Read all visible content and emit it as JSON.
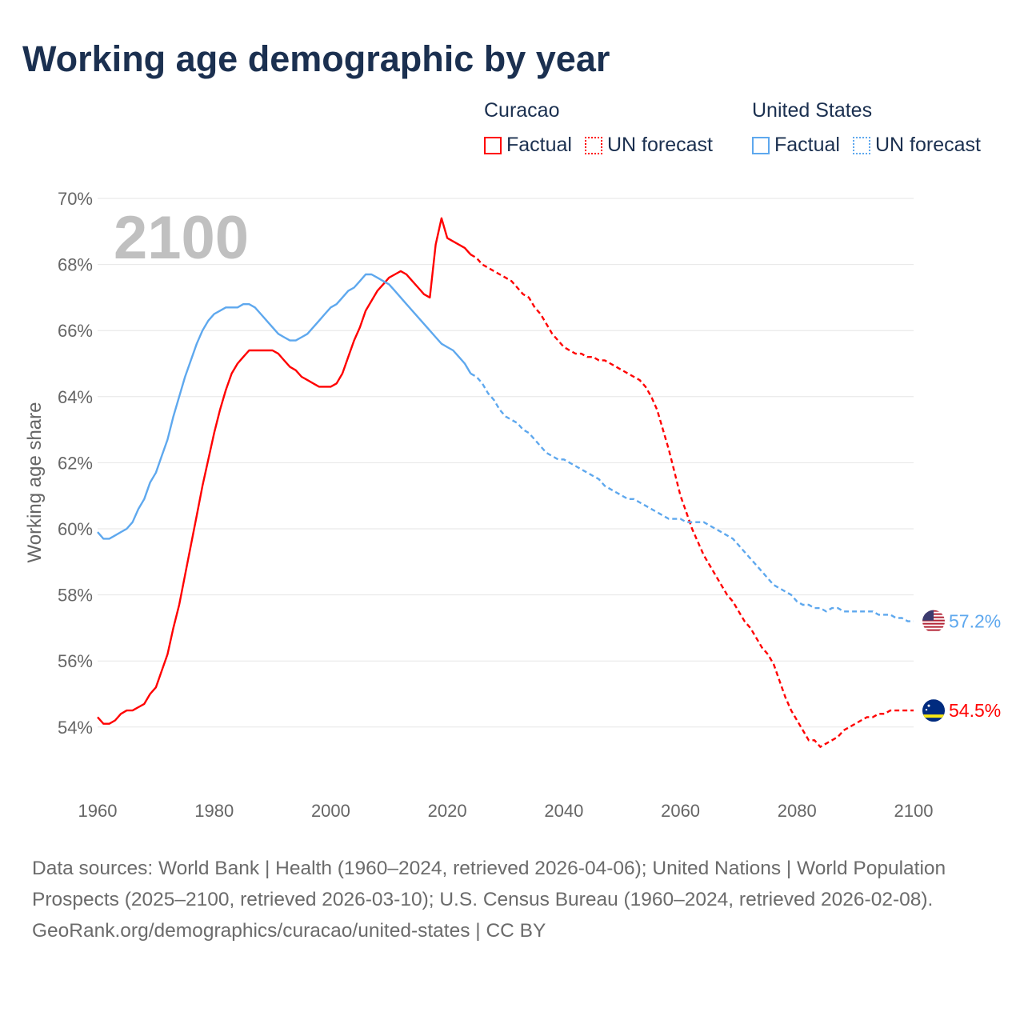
{
  "title": "Working age demographic by year",
  "legend": {
    "groups": [
      {
        "name": "Curacao",
        "color": "#ff0000",
        "factual": "Factual",
        "forecast": "UN forecast"
      },
      {
        "name": "United States",
        "color": "#5ea8ee",
        "factual": "Factual",
        "forecast": "UN forecast"
      }
    ]
  },
  "year_watermark": "2100",
  "footer": {
    "sources": "Data sources: World Bank | Health (1960–2024, retrieved 2026-04-06); United Nations | World Population Prospects (2025–2100, retrieved 2026-03-10); U.S. Census Bureau (1960–2024, retrieved 2026-02-08).",
    "credit": "GeoRank.org/demographics/curacao/united-states | CC BY"
  },
  "chart_data": {
    "type": "line",
    "title": "Working age demographic by year",
    "xlabel": "",
    "ylabel": "Working age share",
    "xlim": [
      1960,
      2100
    ],
    "ylim": [
      53,
      70
    ],
    "x_ticks": [
      "1960",
      "1980",
      "2000",
      "2020",
      "2040",
      "2060",
      "2080",
      "2100"
    ],
    "x_tick_values": [
      1960,
      1980,
      2000,
      2020,
      2040,
      2060,
      2080,
      2100
    ],
    "y_ticks": [
      "54%",
      "56%",
      "58%",
      "60%",
      "62%",
      "64%",
      "66%",
      "68%",
      "70%"
    ],
    "y_tick_values": [
      54,
      56,
      58,
      60,
      62,
      64,
      66,
      68,
      70
    ],
    "grid": true,
    "legend_position": "top-right",
    "series": [
      {
        "name": "Curacao",
        "color": "#ff0000",
        "end_label": "54.5%",
        "factual_start": 1960,
        "factual": [
          54.3,
          54.1,
          54.1,
          54.2,
          54.4,
          54.5,
          54.5,
          54.6,
          54.7,
          55.0,
          55.2,
          55.7,
          56.2,
          57.0,
          57.7,
          58.6,
          59.5,
          60.4,
          61.3,
          62.1,
          62.9,
          63.6,
          64.2,
          64.7,
          65.0,
          65.2,
          65.4,
          65.4,
          65.4,
          65.4,
          65.4,
          65.3,
          65.1,
          64.9,
          64.8,
          64.6,
          64.5,
          64.4,
          64.3,
          64.3,
          64.3,
          64.4,
          64.7,
          65.2,
          65.7,
          66.1,
          66.6,
          66.9,
          67.2,
          67.4,
          67.6,
          67.7,
          67.8,
          67.7,
          67.5,
          67.3,
          67.1,
          67.0,
          68.6,
          69.4,
          68.8,
          68.7,
          68.6,
          68.5,
          68.3
        ],
        "forecast_start": 2024,
        "forecast": [
          68.3,
          68.2,
          68.0,
          67.9,
          67.8,
          67.7,
          67.6,
          67.5,
          67.3,
          67.1,
          67.0,
          66.7,
          66.5,
          66.2,
          65.9,
          65.7,
          65.5,
          65.4,
          65.3,
          65.3,
          65.2,
          65.2,
          65.1,
          65.1,
          65.0,
          64.9,
          64.8,
          64.7,
          64.6,
          64.5,
          64.3,
          64.0,
          63.6,
          63.0,
          62.4,
          61.7,
          61.0,
          60.5,
          60.0,
          59.6,
          59.2,
          58.9,
          58.6,
          58.3,
          58.0,
          57.8,
          57.5,
          57.2,
          57.0,
          56.7,
          56.4,
          56.2,
          55.9,
          55.4,
          54.9,
          54.5,
          54.2,
          53.9,
          53.6,
          53.6,
          53.4,
          53.5,
          53.6,
          53.7,
          53.9,
          54.0,
          54.1,
          54.2,
          54.3,
          54.3,
          54.4,
          54.4,
          54.5,
          54.5,
          54.5,
          54.5,
          54.5
        ]
      },
      {
        "name": "United States",
        "color": "#5ea8ee",
        "end_label": "57.2%",
        "factual_start": 1960,
        "factual": [
          59.9,
          59.7,
          59.7,
          59.8,
          59.9,
          60.0,
          60.2,
          60.6,
          60.9,
          61.4,
          61.7,
          62.2,
          62.7,
          63.4,
          64.0,
          64.6,
          65.1,
          65.6,
          66.0,
          66.3,
          66.5,
          66.6,
          66.7,
          66.7,
          66.7,
          66.8,
          66.8,
          66.7,
          66.5,
          66.3,
          66.1,
          65.9,
          65.8,
          65.7,
          65.7,
          65.8,
          65.9,
          66.1,
          66.3,
          66.5,
          66.7,
          66.8,
          67.0,
          67.2,
          67.3,
          67.5,
          67.7,
          67.7,
          67.6,
          67.5,
          67.4,
          67.2,
          67.0,
          66.8,
          66.6,
          66.4,
          66.2,
          66.0,
          65.8,
          65.6,
          65.5,
          65.4,
          65.2,
          65.0,
          64.7
        ],
        "forecast_start": 2024,
        "forecast": [
          64.7,
          64.6,
          64.4,
          64.1,
          63.9,
          63.6,
          63.4,
          63.3,
          63.2,
          63.0,
          62.9,
          62.7,
          62.5,
          62.3,
          62.2,
          62.1,
          62.1,
          62.0,
          61.9,
          61.8,
          61.7,
          61.6,
          61.5,
          61.3,
          61.2,
          61.1,
          61.0,
          60.9,
          60.9,
          60.8,
          60.7,
          60.6,
          60.5,
          60.4,
          60.3,
          60.3,
          60.3,
          60.2,
          60.2,
          60.2,
          60.2,
          60.1,
          60.0,
          59.9,
          59.8,
          59.7,
          59.5,
          59.3,
          59.1,
          58.9,
          58.7,
          58.5,
          58.3,
          58.2,
          58.1,
          58.0,
          57.8,
          57.7,
          57.7,
          57.6,
          57.6,
          57.5,
          57.6,
          57.6,
          57.5,
          57.5,
          57.5,
          57.5,
          57.5,
          57.5,
          57.4,
          57.4,
          57.4,
          57.3,
          57.3,
          57.2,
          57.2
        ]
      }
    ]
  }
}
